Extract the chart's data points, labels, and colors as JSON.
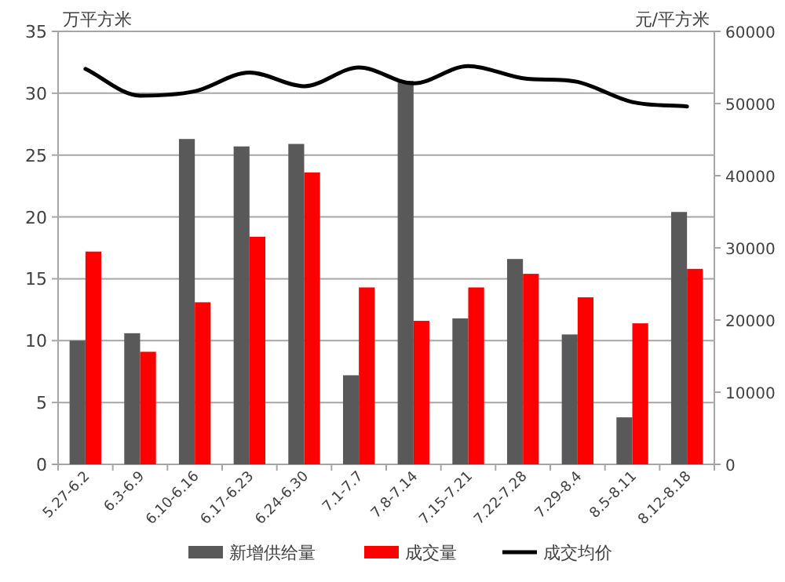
{
  "chart_data": {
    "type": "bar",
    "categories": [
      "5.27-6.2",
      "6.3-6.9",
      "6.10-6.16",
      "6.17-6.23",
      "6.24-6.30",
      "7.1-7.7",
      "7.8-7.14",
      "7.15-7.21",
      "7.22-7.28",
      "7.29-8.4",
      "8.5-8.11",
      "8.12-8.18"
    ],
    "series": [
      {
        "name": "新增供给量",
        "color": "#595959",
        "values": [
          10,
          10.6,
          26.3,
          25.7,
          25.9,
          7.2,
          31.0,
          11.8,
          16.6,
          10.5,
          3.8,
          20.4
        ]
      },
      {
        "name": "成交量",
        "color": "#ff0000",
        "values": [
          17.2,
          9.1,
          13.1,
          18.4,
          23.6,
          14.3,
          11.6,
          14.3,
          15.4,
          13.5,
          11.4,
          15.8
        ]
      },
      {
        "name": "成交均价",
        "type": "line",
        "axis": "y2",
        "color": "#000000",
        "values": [
          54800,
          51100,
          51700,
          54300,
          52400,
          55000,
          52800,
          55200,
          53500,
          53000,
          50200,
          49600
        ]
      }
    ],
    "ylabel": "万平方米",
    "y2label": "元/平方米",
    "ylim": [
      0,
      35
    ],
    "yticks": [
      0,
      5,
      10,
      15,
      20,
      25,
      30,
      35
    ],
    "y2lim": [
      0,
      60000
    ],
    "y2ticks": [
      0,
      10000,
      20000,
      30000,
      40000,
      50000,
      60000
    ],
    "grid": "y",
    "legend": "bottom",
    "marker": "none"
  }
}
